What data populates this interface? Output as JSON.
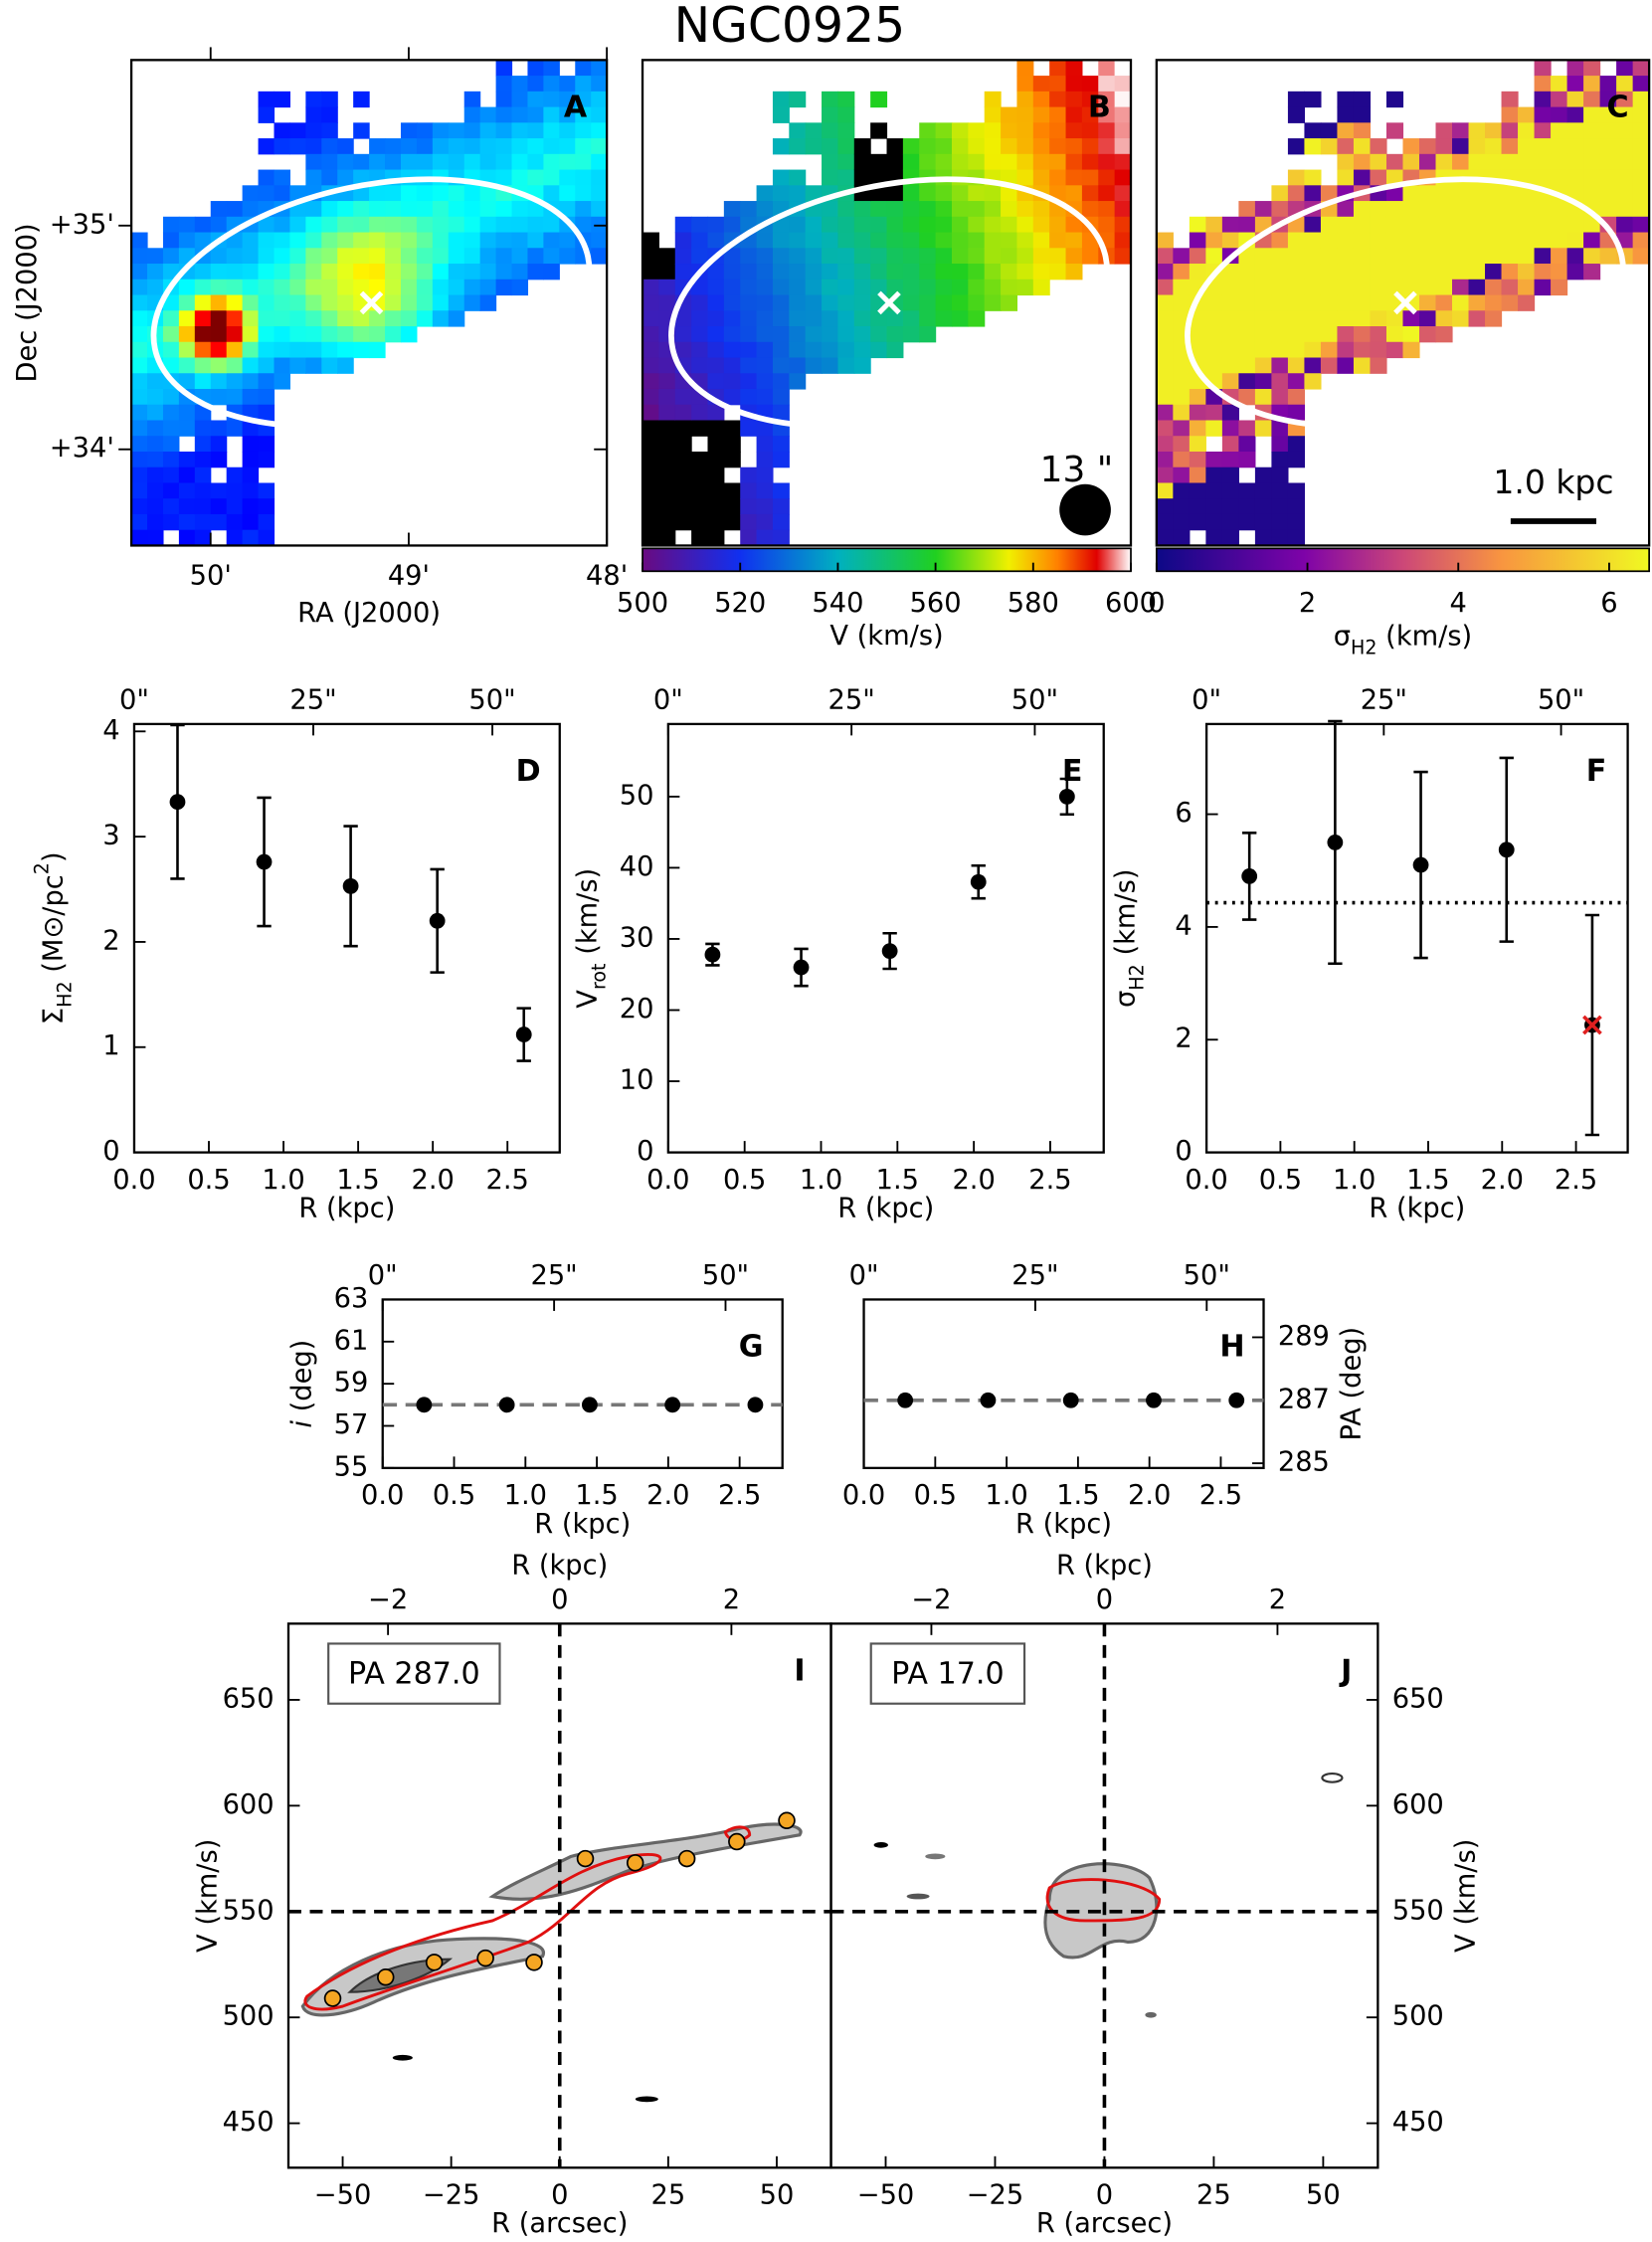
{
  "title": "NGC0925",
  "chart_data": [
    {
      "type": "map",
      "label": "A",
      "label_color": "#33cc33",
      "colormap": "jet",
      "xlabel": "RA (J2000)",
      "ylabel": "Dec (J2000)",
      "xlim": [
        50.4,
        48.0
      ],
      "xticks": [
        {
          "value": 50,
          "label": "50'"
        },
        {
          "value": 49,
          "label": "49'"
        },
        {
          "value": 48,
          "label": "48'"
        }
      ],
      "ylim": [
        33.57,
        35.74
      ],
      "yticks": [
        {
          "value": 35,
          "label": "+35'"
        },
        {
          "value": 34,
          "label": "+34'"
        }
      ]
    },
    {
      "type": "map",
      "label": "B",
      "label_color": "#33cc33",
      "colormap": "rainbow",
      "clim": [
        500,
        600
      ],
      "cticks": [
        500,
        520,
        540,
        560,
        580,
        600
      ],
      "clabel": "V (km/s)",
      "beam_label": "13 \""
    },
    {
      "type": "map",
      "label": "C",
      "label_color": "#33cc33",
      "colormap": "plasma",
      "clim": [
        0,
        6.53
      ],
      "cticks": [
        0,
        2,
        4,
        6
      ],
      "clabel_parts": [
        {
          "text": "σ"
        },
        {
          "text": "H2",
          "shift": "sub"
        },
        {
          "text": " (km/s)"
        }
      ],
      "scalebar_label": "1.0 kpc"
    },
    {
      "type": "errorbar",
      "label": "D",
      "label_color": "#33cc33",
      "xlabel": "R (kpc)",
      "ylabel_parts": [
        {
          "text": "Σ"
        },
        {
          "text": "H2",
          "shift": "sub"
        },
        {
          "text": " (M⊙/pc"
        },
        {
          "text": "2",
          "shift": "super"
        },
        {
          "text": ")"
        }
      ],
      "x": [
        0.29,
        0.87,
        1.45,
        2.03,
        2.61
      ],
      "values": [
        3.33,
        2.76,
        2.53,
        2.2,
        1.12
      ],
      "errors": [
        0.73,
        0.61,
        0.57,
        0.49,
        0.25
      ],
      "xlim": [
        0,
        2.85
      ],
      "xticks": [
        {
          "value": 0,
          "label": "0.0"
        },
        0.5,
        {
          "value": 1,
          "label": "1.0"
        },
        1.5,
        {
          "value": 2,
          "label": "2.0"
        },
        2.5
      ],
      "x2lim": [
        0,
        59.4
      ],
      "x2ticks": [
        {
          "value": 0,
          "label": "0\""
        },
        {
          "value": 25,
          "label": "25\""
        },
        {
          "value": 50,
          "label": "50\""
        }
      ],
      "ylim": [
        0,
        4.07
      ],
      "yticks": [
        0,
        1,
        2,
        3,
        4
      ],
      "yaxis_side": "left"
    },
    {
      "type": "errorbar",
      "label": "E",
      "label_color": "#33cc33",
      "xlabel": "R (kpc)",
      "ylabel_parts": [
        {
          "text": "V"
        },
        {
          "text": "rot",
          "shift": "sub"
        },
        {
          "text": " (km/s)"
        }
      ],
      "x": [
        0.29,
        0.87,
        1.45,
        2.03,
        2.61
      ],
      "values": [
        27.8,
        26,
        28.3,
        38,
        50
      ],
      "errors": [
        1.5,
        2.6,
        2.5,
        2.3,
        2.5
      ],
      "xlim": [
        0,
        2.85
      ],
      "xticks": [
        {
          "value": 0,
          "label": "0.0"
        },
        0.5,
        {
          "value": 1,
          "label": "1.0"
        },
        1.5,
        {
          "value": 2,
          "label": "2.0"
        },
        2.5
      ],
      "x2lim": [
        0,
        59.4
      ],
      "x2ticks": [
        {
          "value": 0,
          "label": "0\""
        },
        {
          "value": 25,
          "label": "25\""
        },
        {
          "value": 50,
          "label": "50\""
        }
      ],
      "ylim": [
        0,
        60.2
      ],
      "yticks": [
        0,
        10,
        20,
        30,
        40,
        50
      ],
      "yaxis_side": "left"
    },
    {
      "type": "errorbar",
      "label": "F",
      "label_color": "#33cc33",
      "xlabel": "R (kpc)",
      "ylabel_parts": [
        {
          "text": "σ"
        },
        {
          "text": "H2",
          "shift": "sub"
        },
        {
          "text": " (km/s)"
        }
      ],
      "x": [
        0.29,
        0.87,
        1.45,
        2.03,
        2.61
      ],
      "values": [
        4.9,
        5.5,
        5.1,
        5.37,
        2.26
      ],
      "errors": [
        0.77,
        2.15,
        1.65,
        1.63,
        1.95
      ],
      "flagged": [
        false,
        false,
        false,
        false,
        true
      ],
      "flag_color": "#e02020",
      "hline": 4.43,
      "hline_style": "dotted",
      "hline_color": "#000000",
      "xlim": [
        0,
        2.85
      ],
      "xticks": [
        {
          "value": 0,
          "label": "0.0"
        },
        0.5,
        {
          "value": 1,
          "label": "1.0"
        },
        1.5,
        {
          "value": 2,
          "label": "2.0"
        },
        2.5
      ],
      "x2lim": [
        0,
        59.4
      ],
      "x2ticks": [
        {
          "value": 0,
          "label": "0\""
        },
        {
          "value": 25,
          "label": "25\""
        },
        {
          "value": 50,
          "label": "50\""
        }
      ],
      "ylim": [
        0,
        7.6
      ],
      "yticks": [
        0,
        2,
        4,
        6
      ],
      "yaxis_side": "left"
    },
    {
      "type": "errorbar",
      "label": "G",
      "label_color": "#33cc33",
      "xlabel": "R (kpc)",
      "ylabel_parts": [
        {
          "text": "i",
          "style": "italic"
        },
        {
          "text": " (deg)"
        }
      ],
      "x": [
        0.29,
        0.87,
        1.45,
        2.03,
        2.61
      ],
      "values": [
        58,
        58,
        58,
        58,
        58
      ],
      "hline": 58,
      "hline_style": "dashed",
      "hline_color": "#777777",
      "xlim": [
        0,
        2.8
      ],
      "xticks": [
        {
          "value": 0,
          "label": "0.0"
        },
        0.5,
        {
          "value": 1,
          "label": "1.0"
        },
        1.5,
        {
          "value": 2,
          "label": "2.0"
        },
        2.5
      ],
      "x2lim": [
        0,
        58.3
      ],
      "x2ticks": [
        {
          "value": 0,
          "label": "0\""
        },
        {
          "value": 25,
          "label": "25\""
        },
        {
          "value": 50,
          "label": "50\""
        }
      ],
      "ylim": [
        55,
        63
      ],
      "yticks": [
        55,
        57,
        59,
        61,
        63
      ],
      "yaxis_side": "left"
    },
    {
      "type": "errorbar",
      "label": "H",
      "label_color": "#33cc33",
      "xlabel": "R (kpc)",
      "ylabel_parts": [
        {
          "text": "PA (deg)"
        }
      ],
      "x": [
        0.29,
        0.87,
        1.45,
        2.03,
        2.61
      ],
      "values": [
        287,
        287,
        287,
        287,
        287
      ],
      "hline": 287,
      "hline_style": "dashed",
      "hline_color": "#777777",
      "xlim": [
        0,
        2.8
      ],
      "xticks": [
        {
          "value": 0,
          "label": "0.0"
        },
        0.5,
        {
          "value": 1,
          "label": "1.0"
        },
        1.5,
        {
          "value": 2,
          "label": "2.0"
        },
        2.5
      ],
      "x2lim": [
        0,
        58.3
      ],
      "x2ticks": [
        {
          "value": 0,
          "label": "0\""
        },
        {
          "value": 25,
          "label": "25\""
        },
        {
          "value": 50,
          "label": "50\""
        }
      ],
      "ylim": [
        284.85,
        290.2
      ],
      "yticks": [
        285,
        287,
        289
      ],
      "yaxis_side": "right"
    },
    {
      "type": "pv",
      "label": "I",
      "label_color": "#33cc33",
      "box_label": "PA 287.0",
      "xlabel": "R (arcsec)",
      "ylabel_parts": [
        {
          "text": "V (km/s)"
        }
      ],
      "x2label": "R (kpc)",
      "x": [
        -52.3,
        -40.1,
        -28.9,
        -17.1,
        -5.9,
        5.9,
        17.4,
        29.3,
        40.8,
        52.3
      ],
      "values": [
        509,
        519,
        526,
        528,
        526,
        575,
        573,
        575,
        583,
        593
      ],
      "point_color": "#f5a623",
      "vsys": 550,
      "x0": 0,
      "xlim": [
        -62.5,
        62.5
      ],
      "xticks": [
        {
          "value": -50,
          "label": "−50"
        },
        {
          "value": -25,
          "label": "−25"
        },
        0,
        25,
        50
      ],
      "x2lim": [
        -3.16,
        3.16
      ],
      "x2ticks": [
        {
          "value": -2,
          "label": "−2"
        },
        0,
        2
      ],
      "ylim": [
        429,
        686
      ],
      "yticks": [
        450,
        500,
        550,
        600,
        650
      ],
      "yaxis_side": "left"
    },
    {
      "type": "pv",
      "label": "J",
      "label_color": "#33cc33",
      "box_label": "PA 17.0",
      "xlabel": "R (arcsec)",
      "ylabel_parts": [
        {
          "text": "V (km/s)"
        }
      ],
      "x2label": "R (kpc)",
      "vsys": 550,
      "x0": 0,
      "xlim": [
        -62.5,
        62.5
      ],
      "xticks": [
        {
          "value": -50,
          "label": "−50"
        },
        {
          "value": -25,
          "label": "−25"
        },
        0,
        25,
        50
      ],
      "x2lim": [
        -3.16,
        3.16
      ],
      "x2ticks": [
        {
          "value": -2,
          "label": "−2"
        },
        0,
        2
      ],
      "ylim": [
        429,
        686
      ],
      "yticks": [
        450,
        500,
        550,
        600,
        650
      ],
      "yaxis_side": "right"
    }
  ]
}
